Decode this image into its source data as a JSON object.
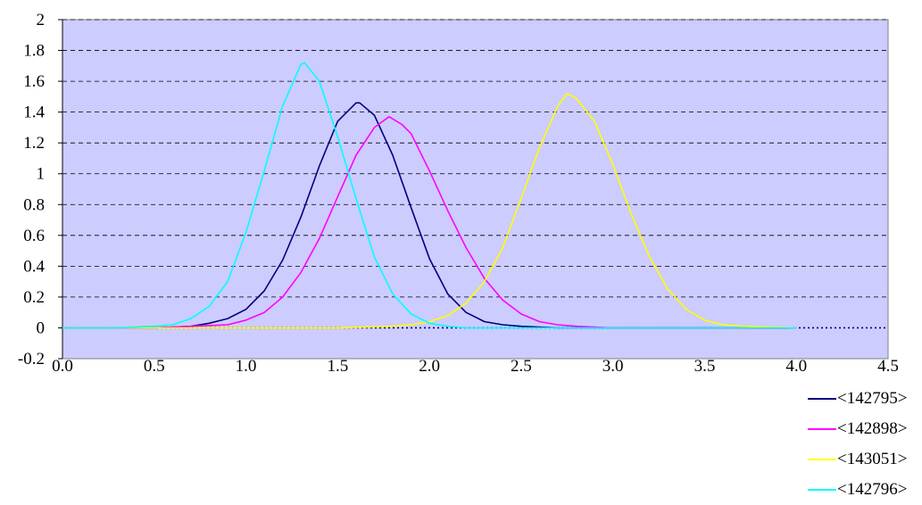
{
  "chart_data": {
    "type": "line",
    "title": "",
    "xlabel": "",
    "ylabel": "",
    "xlim": [
      0.0,
      4.5
    ],
    "ylim": [
      -0.2,
      2.0
    ],
    "x_ticks": [
      0.0,
      0.5,
      1.0,
      1.5,
      2.0,
      2.5,
      3.0,
      3.5,
      4.0,
      4.5
    ],
    "x_tick_labels": [
      "0.0",
      "0.5",
      "1.0",
      "1.5",
      "2.0",
      "2.5",
      "3.0",
      "3.5",
      "4.0",
      "4.5"
    ],
    "y_ticks": [
      -0.2,
      0,
      0.2,
      0.4,
      0.6,
      0.8,
      1,
      1.2,
      1.4,
      1.6,
      1.8,
      2
    ],
    "y_tick_labels": [
      "-0.2",
      "0",
      "0.2",
      "0.4",
      "0.6",
      "0.8",
      "1",
      "1.2",
      "1.4",
      "1.6",
      "1.8",
      "2"
    ],
    "plot_background": "#ccccff",
    "grid": "horizontal dashed",
    "legend_position": "bottom-right",
    "series": [
      {
        "name": "<142795>",
        "color": "#000080",
        "x": [
          0.0,
          0.3,
          0.5,
          0.7,
          0.8,
          0.9,
          1.0,
          1.1,
          1.2,
          1.3,
          1.4,
          1.5,
          1.6,
          1.62,
          1.7,
          1.8,
          1.9,
          2.0,
          2.1,
          2.2,
          2.3,
          2.4,
          2.5,
          2.7,
          3.0,
          4.0
        ],
        "y": [
          0.0,
          0.0,
          0.0,
          0.01,
          0.03,
          0.06,
          0.12,
          0.24,
          0.44,
          0.72,
          1.05,
          1.34,
          1.46,
          1.46,
          1.38,
          1.12,
          0.78,
          0.45,
          0.22,
          0.1,
          0.04,
          0.02,
          0.01,
          0.0,
          0.0,
          0.0
        ]
      },
      {
        "name": "<142898>",
        "color": "#ff00ff",
        "x": [
          0.0,
          0.5,
          0.7,
          0.9,
          1.0,
          1.1,
          1.2,
          1.3,
          1.4,
          1.5,
          1.6,
          1.7,
          1.78,
          1.85,
          1.9,
          2.0,
          2.1,
          2.2,
          2.3,
          2.4,
          2.5,
          2.6,
          2.7,
          2.8,
          3.0,
          4.0
        ],
        "y": [
          0.0,
          0.0,
          0.01,
          0.02,
          0.05,
          0.1,
          0.2,
          0.36,
          0.58,
          0.85,
          1.12,
          1.3,
          1.37,
          1.32,
          1.26,
          1.02,
          0.76,
          0.52,
          0.32,
          0.18,
          0.09,
          0.04,
          0.02,
          0.01,
          0.0,
          0.0
        ]
      },
      {
        "name": "<143051>",
        "color": "#ffff00",
        "x": [
          0.0,
          1.0,
          1.5,
          1.8,
          1.9,
          2.0,
          2.1,
          2.2,
          2.3,
          2.4,
          2.5,
          2.6,
          2.7,
          2.75,
          2.8,
          2.9,
          3.0,
          3.1,
          3.2,
          3.3,
          3.4,
          3.5,
          3.6,
          3.7,
          4.0
        ],
        "y": [
          0.0,
          0.0,
          0.0,
          0.01,
          0.02,
          0.04,
          0.08,
          0.16,
          0.3,
          0.52,
          0.84,
          1.17,
          1.44,
          1.52,
          1.49,
          1.34,
          1.06,
          0.74,
          0.46,
          0.25,
          0.12,
          0.05,
          0.02,
          0.01,
          0.0
        ]
      },
      {
        "name": "<142796>",
        "color": "#00ffff",
        "x": [
          0.0,
          0.3,
          0.5,
          0.6,
          0.7,
          0.8,
          0.9,
          1.0,
          1.1,
          1.2,
          1.3,
          1.32,
          1.4,
          1.5,
          1.6,
          1.7,
          1.8,
          1.9,
          2.0,
          2.1,
          2.2,
          2.5,
          3.0,
          4.0
        ],
        "y": [
          0.0,
          0.0,
          0.01,
          0.02,
          0.06,
          0.14,
          0.3,
          0.62,
          1.02,
          1.44,
          1.71,
          1.72,
          1.6,
          1.24,
          0.84,
          0.46,
          0.22,
          0.09,
          0.03,
          0.01,
          0.0,
          0.0,
          0.0,
          0.0
        ]
      }
    ]
  }
}
